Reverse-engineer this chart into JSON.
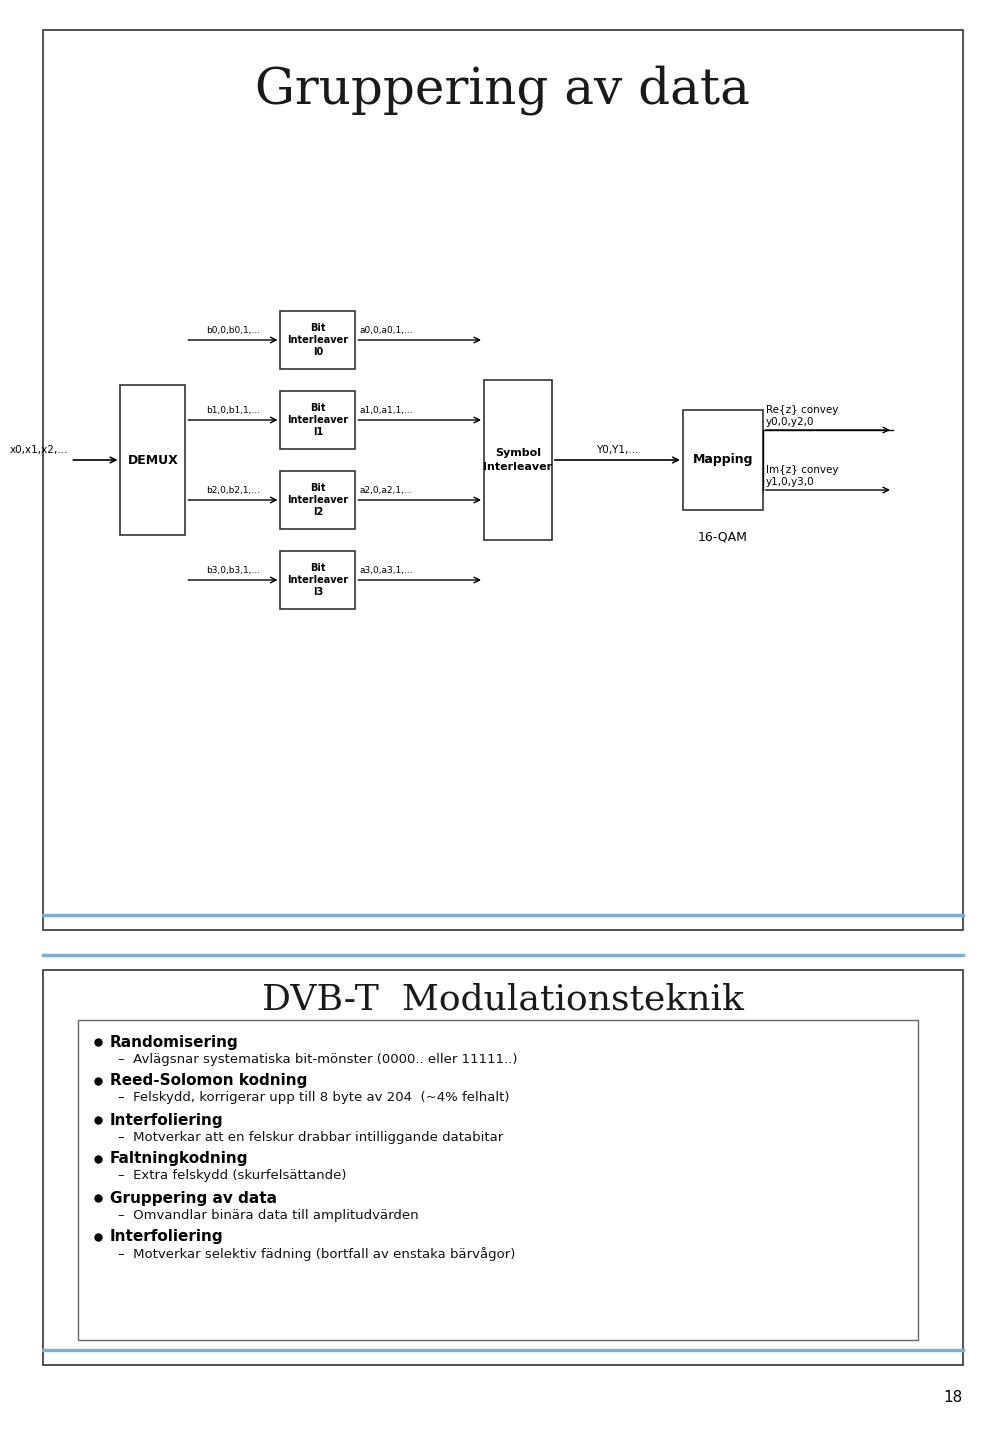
{
  "title": "Gruppering av data",
  "background_color": "#ffffff",
  "divider_color": "#7bafd4",
  "page_number": "18",
  "diagram": {
    "demux_label": "DEMUX",
    "input_label": "x0,x1,x2,...",
    "bit_interleavers": [
      {
        "label": "Bit\nInterleaver\nI0",
        "in_label": "b0,0,b0,1,...",
        "out_label": "a0,0,a0,1,..."
      },
      {
        "label": "Bit\nInterleaver\nI1",
        "in_label": "b1,0,b1,1,...",
        "out_label": "a1,0,a1,1,..."
      },
      {
        "label": "Bit\nInterleaver\nI2",
        "in_label": "b2,0,b2,1,...",
        "out_label": "a2,0,a2,1,..."
      },
      {
        "label": "Bit\nInterleaver\nI3",
        "in_label": "b3,0,b3,1,...",
        "out_label": "a3,0,a3,1,..."
      }
    ],
    "symbol_interleaver_label": "Symbol\nInterleaver",
    "symbol_out_label": "Y0,Y1,...",
    "mapping_label": "Mapping",
    "qam_label": "16-QAM",
    "re_label": "Re{z} convey\ny0,0,y2,0",
    "im_label": "Im{z} convey\ny1,0,y3,0"
  },
  "bottom_title": "DVB-T  Modulationsteknik",
  "bullet_items": [
    {
      "bullet": "Randomisering",
      "sub": "Avlägsnar systematiska bit-mönster (0000.. eller 11111..)"
    },
    {
      "bullet": "Reed-Solomon kodning",
      "sub": "Felskydd, korrigerar upp till 8 byte av 204  (~4% felhalt)"
    },
    {
      "bullet": "Interfoliering",
      "sub": "Motverkar att en felskur drabbar intilliggande databitar"
    },
    {
      "bullet": "Faltningkodning",
      "sub": "Extra felskydd (skurfelsättande)"
    },
    {
      "bullet": "Gruppering av data",
      "sub": "Omvandlar binära data till amplitudvärden"
    },
    {
      "bullet": "Interfoliering",
      "sub": "Motverkar selektiv fädning (bortfall av enstaka bärvågor)"
    }
  ]
}
